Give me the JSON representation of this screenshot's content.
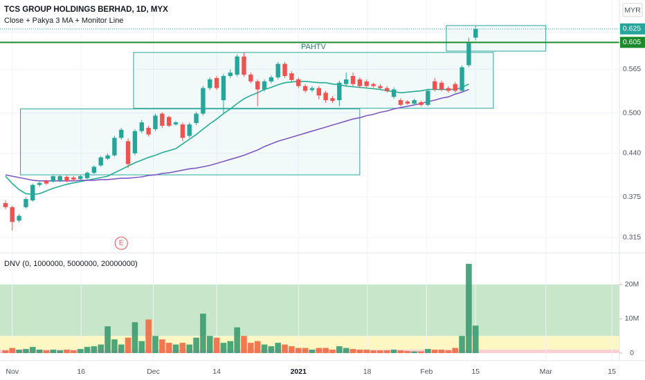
{
  "chart_data": [
    {
      "type": "candlestick",
      "title": "TCS GROUP HOLDINGS BERHAD, 1D, MYX",
      "subtitle": "Close + Pakya 3 MA + Monitor Line",
      "currency": "MYR",
      "up_color": "#26a69a",
      "down_color": "#ef5350",
      "open": [
        0.366,
        0.36,
        0.34,
        0.36,
        0.37,
        0.393,
        0.399,
        0.398,
        0.399,
        0.405,
        0.404,
        0.402,
        0.403,
        0.411,
        0.422,
        0.432,
        0.437,
        0.463,
        0.458,
        0.44,
        0.473,
        0.478,
        0.476,
        0.499,
        0.494,
        0.483,
        0.483,
        0.466,
        0.485,
        0.499,
        0.537,
        0.552,
        0.519,
        0.555,
        0.557,
        0.584,
        0.557,
        0.547,
        0.535,
        0.547,
        0.553,
        0.573,
        0.559,
        0.55,
        0.54,
        0.534,
        0.537,
        0.53,
        0.522,
        0.519,
        0.543,
        0.555,
        0.55,
        0.547,
        0.543,
        0.54,
        0.537,
        0.524,
        0.519,
        0.517,
        0.514,
        0.516,
        0.512,
        0.547,
        0.545,
        0.537,
        0.543,
        0.533,
        0.571,
        0.612
      ],
      "high": [
        0.37,
        0.362,
        0.35,
        0.375,
        0.395,
        0.398,
        0.401,
        0.408,
        0.408,
        0.407,
        0.406,
        0.408,
        0.413,
        0.422,
        0.436,
        0.44,
        0.466,
        0.478,
        0.462,
        0.476,
        0.49,
        0.481,
        0.499,
        0.501,
        0.496,
        0.488,
        0.486,
        0.486,
        0.502,
        0.54,
        0.553,
        0.555,
        0.558,
        0.565,
        0.587,
        0.59,
        0.56,
        0.55,
        0.55,
        0.556,
        0.576,
        0.576,
        0.562,
        0.553,
        0.543,
        0.54,
        0.54,
        0.533,
        0.525,
        0.548,
        0.56,
        0.56,
        0.553,
        0.55,
        0.545,
        0.543,
        0.54,
        0.538,
        0.522,
        0.519,
        0.521,
        0.518,
        0.536,
        0.552,
        0.548,
        0.54,
        0.546,
        0.571,
        0.612,
        0.63
      ],
      "low": [
        0.357,
        0.325,
        0.337,
        0.358,
        0.368,
        0.39,
        0.393,
        0.396,
        0.397,
        0.397,
        0.399,
        0.4,
        0.401,
        0.409,
        0.42,
        0.43,
        0.435,
        0.46,
        0.418,
        0.437,
        0.47,
        0.465,
        0.473,
        0.478,
        0.479,
        0.481,
        0.458,
        0.463,
        0.482,
        0.496,
        0.534,
        0.534,
        0.5,
        0.552,
        0.554,
        0.554,
        0.544,
        0.51,
        0.532,
        0.544,
        0.55,
        0.552,
        0.546,
        0.537,
        0.53,
        0.531,
        0.52,
        0.515,
        0.515,
        0.51,
        0.54,
        0.54,
        0.537,
        0.537,
        0.537,
        0.534,
        0.53,
        0.521,
        0.51,
        0.512,
        0.512,
        0.51,
        0.51,
        0.532,
        0.532,
        0.53,
        0.53,
        0.53,
        0.568,
        0.608
      ],
      "close": [
        0.36,
        0.338,
        0.347,
        0.372,
        0.393,
        0.396,
        0.395,
        0.406,
        0.406,
        0.399,
        0.401,
        0.406,
        0.411,
        0.42,
        0.434,
        0.437,
        0.463,
        0.475,
        0.424,
        0.473,
        0.486,
        0.468,
        0.496,
        0.481,
        0.481,
        0.486,
        0.463,
        0.483,
        0.499,
        0.537,
        0.55,
        0.537,
        0.555,
        0.56,
        0.584,
        0.557,
        0.547,
        0.535,
        0.547,
        0.553,
        0.573,
        0.555,
        0.549,
        0.54,
        0.533,
        0.537,
        0.526,
        0.519,
        0.518,
        0.545,
        0.55,
        0.543,
        0.54,
        0.54,
        0.54,
        0.537,
        0.533,
        0.535,
        0.512,
        0.514,
        0.519,
        0.512,
        0.533,
        0.535,
        0.535,
        0.533,
        0.533,
        0.568,
        0.604,
        0.625
      ],
      "lines": [
        {
          "color": "#22ab94",
          "values": [
            0.406,
            0.395,
            0.386,
            0.38,
            0.379,
            0.38,
            0.384,
            0.388,
            0.391,
            0.394,
            0.396,
            0.398,
            0.4,
            0.402,
            0.404,
            0.406,
            0.411,
            0.416,
            0.421,
            0.426,
            0.43,
            0.434,
            0.437,
            0.441,
            0.444,
            0.447,
            0.454,
            0.461,
            0.468,
            0.476,
            0.484,
            0.491,
            0.499,
            0.506,
            0.514,
            0.521,
            0.526,
            0.53,
            0.535,
            0.538,
            0.542,
            0.545,
            0.546,
            0.547,
            0.547,
            0.546,
            0.545,
            0.545,
            0.543,
            0.542,
            0.54,
            0.539,
            0.538,
            0.537,
            0.536,
            0.535,
            0.533,
            0.532,
            0.53,
            0.531,
            0.532,
            0.533,
            0.535,
            0.535,
            0.535,
            0.535,
            0.535,
            0.538,
            0.543,
            null
          ]
        },
        {
          "color": "#7e57c2",
          "values": [
            0.408,
            0.406,
            0.404,
            0.402,
            0.4,
            0.399,
            0.399,
            0.399,
            0.399,
            0.399,
            0.399,
            0.4,
            0.4,
            0.4,
            0.401,
            0.401,
            0.402,
            0.403,
            0.403,
            0.404,
            0.405,
            0.407,
            0.408,
            0.41,
            0.411,
            0.413,
            0.415,
            0.417,
            0.418,
            0.42,
            0.422,
            0.425,
            0.428,
            0.431,
            0.434,
            0.437,
            0.441,
            0.445,
            0.45,
            0.454,
            0.458,
            0.461,
            0.464,
            0.467,
            0.47,
            0.473,
            0.476,
            0.479,
            0.482,
            0.485,
            0.488,
            0.491,
            0.493,
            0.496,
            0.498,
            0.501,
            0.503,
            0.506,
            0.508,
            0.51,
            0.512,
            0.514,
            0.517,
            0.519,
            0.522,
            0.524,
            0.528,
            0.531,
            0.535,
            null
          ]
        }
      ],
      "boxes": [
        {
          "x": [
            2.2,
            52.0
          ],
          "y": [
            0.408,
            0.506
          ]
        },
        {
          "x": [
            18.8,
            71.6
          ],
          "y": [
            0.507,
            0.59
          ],
          "label": "PAHTV"
        },
        {
          "x": [
            64.7,
            79.3
          ],
          "y": [
            0.592,
            0.63
          ]
        }
      ],
      "last_price": 0.625,
      "last_price_color": "#26a69a",
      "monitor_line": 0.605,
      "monitor_color": "#1b8a2a",
      "events": [
        {
          "x": 17.0,
          "label": "E"
        }
      ],
      "xlim": [
        -0.8,
        90.1
      ],
      "ylim": [
        0.293,
        0.668
      ],
      "yticks": [
        0.315,
        0.375,
        {
          "value": 0.44,
          "label": "0.440"
        },
        {
          "value": 0.5,
          "label": "0.500"
        },
        0.565
      ],
      "grid": true
    },
    {
      "type": "bar",
      "title": "DNV (0, 1000000, 5000000, 20000000)",
      "up_color": "#3a9b72",
      "down_color": "#f06a45",
      "values": [
        800000,
        1500000,
        1000000,
        1200000,
        1800000,
        1000000,
        800000,
        1000000,
        800000,
        1000000,
        800000,
        1200000,
        1800000,
        2000000,
        2500000,
        7800000,
        4000000,
        2500000,
        4500000,
        9000000,
        3500000,
        9800000,
        5000000,
        4000000,
        3000000,
        2500000,
        3000000,
        2500000,
        4500000,
        11500000,
        5000000,
        4500000,
        3000000,
        3500000,
        7500000,
        5000000,
        3000000,
        3500000,
        2500000,
        2000000,
        3000000,
        2500000,
        2000000,
        1500000,
        1500000,
        1000000,
        1500000,
        1500000,
        1000000,
        2000000,
        1500000,
        1200000,
        1000000,
        1000000,
        800000,
        800000,
        800000,
        1000000,
        800000,
        600000,
        500000,
        500000,
        1200000,
        1000000,
        1000000,
        800000,
        1500000,
        5000000,
        26000000,
        8000000
      ],
      "bands": [
        {
          "from": 0,
          "to": 1000000,
          "color": "#ffcdd2"
        },
        {
          "from": 1000000,
          "to": 5000000,
          "color": "#fdf7c3"
        },
        {
          "from": 5000000,
          "to": 20000000,
          "color": "#c8e6c9"
        }
      ],
      "xlim": [
        -0.8,
        90.1
      ],
      "xticks": [
        {
          "value": 1.0,
          "label": "Nov"
        },
        {
          "value": 11.1,
          "label": "16"
        },
        {
          "value": 21.7,
          "label": "Dec"
        },
        {
          "value": 31.0,
          "label": "14"
        },
        {
          "value": 43.0,
          "label": "2021"
        },
        {
          "value": 53.1,
          "label": "18"
        },
        {
          "value": 61.8,
          "label": "Feb"
        },
        {
          "value": 69.0,
          "label": "15"
        },
        {
          "value": 79.3,
          "label": "Mar"
        },
        {
          "value": 89.0,
          "label": "15"
        }
      ],
      "ylim": [
        -1800000,
        28800000
      ],
      "yticks": [
        0,
        {
          "value": 10000000,
          "label": "10M"
        },
        {
          "value": 20000000,
          "label": "20M"
        }
      ]
    }
  ]
}
